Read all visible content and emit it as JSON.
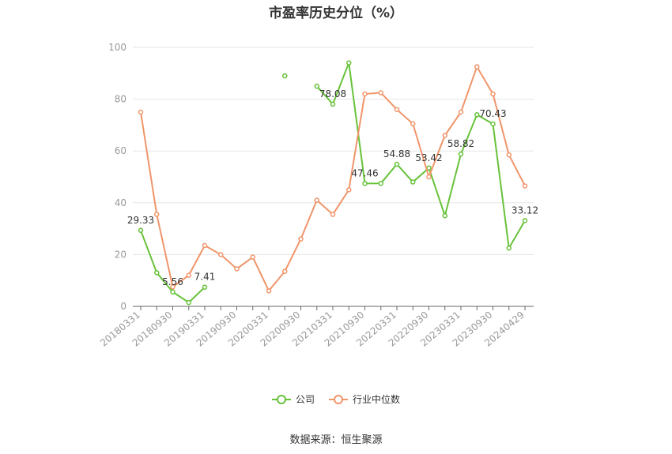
{
  "title": "市盈率历史分位（%）",
  "source": "数据来源：恒生聚源",
  "colors": {
    "company": "#67c23a",
    "industry": "#f0956a",
    "axis": "#999999",
    "grid": "#e6e6e6"
  },
  "legend": [
    {
      "key": "company",
      "label": "公司"
    },
    {
      "key": "industry",
      "label": "行业中位数"
    }
  ],
  "chart_data": {
    "type": "line",
    "title": "市盈率历史分位（%）",
    "ylim": [
      0,
      100
    ],
    "yticks": [
      0,
      20,
      40,
      60,
      80,
      100
    ],
    "grid": true,
    "legend_position": "bottom",
    "x": [
      "20180331",
      "20180630",
      "20180930",
      "20181231",
      "20190331",
      "20190630",
      "20190930",
      "20191231",
      "20200331",
      "20200630",
      "20200930",
      "20201231",
      "20210331",
      "20210630",
      "20210930",
      "20211231",
      "20220331",
      "20220630",
      "20220930",
      "20221231",
      "20230331",
      "20230630",
      "20230930",
      "20231231",
      "20240429"
    ],
    "x_tick_labels": [
      "20180331",
      "20180930",
      "20190331",
      "20190930",
      "20200331",
      "20200930",
      "20210331",
      "20210930",
      "20220331",
      "20220930",
      "20230331",
      "20230930",
      "20240429"
    ],
    "series": [
      {
        "name": "公司",
        "color": "#67c23a",
        "values": [
          29.33,
          13,
          5.56,
          1.5,
          7.41,
          null,
          null,
          null,
          null,
          89,
          null,
          85,
          78.08,
          94,
          47.46,
          47.5,
          54.88,
          48,
          53.42,
          35,
          58.82,
          74,
          70.43,
          22.5,
          33.12
        ],
        "labels": {
          "0": "29.33",
          "2": "5.56",
          "4": "7.41",
          "12": "78.08",
          "14": "47.46",
          "16": "54.88",
          "18": "53.42",
          "20": "58.82",
          "22": "70.43",
          "24": "33.12"
        }
      },
      {
        "name": "行业中位数",
        "color": "#f0956a",
        "values": [
          75,
          35.5,
          7.5,
          12,
          23.5,
          20,
          14.5,
          19,
          6,
          13.5,
          26,
          41,
          35.5,
          45,
          82,
          82.5,
          76,
          70.5,
          50,
          66,
          75,
          92.5,
          82,
          58.5,
          46.5
        ],
        "labels": {}
      }
    ]
  }
}
